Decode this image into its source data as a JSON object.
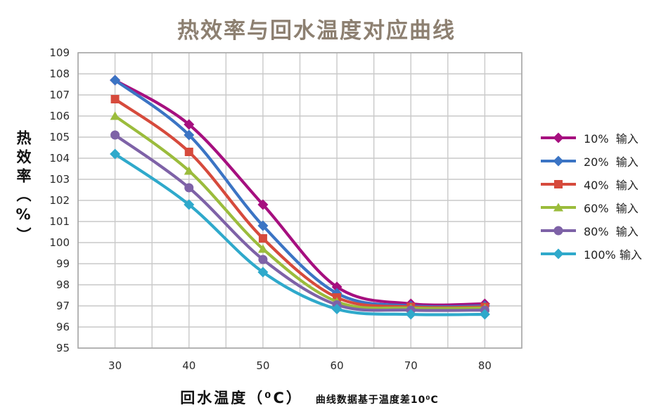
{
  "title": "热效率与回水温度对应曲线",
  "colors": {
    "title_text": "#8D8071",
    "grid_line": "#C9C9C9",
    "plot_border": "#A8A8A8",
    "tick_text": "#2B2B2B"
  },
  "chart_data": {
    "type": "line",
    "title": "热效率与回水温度对应曲线",
    "xlabel": "回水温度（⁰C）",
    "xlabel_note": "曲线数据基于温度差10⁰C",
    "ylabel": "热效率（%）",
    "x": [
      30,
      40,
      50,
      60,
      70,
      80
    ],
    "xlim": [
      25,
      85
    ],
    "ylim": [
      95,
      109
    ],
    "x_ticks": [
      30,
      40,
      50,
      60,
      70,
      80
    ],
    "y_ticks": [
      95,
      96,
      97,
      98,
      99,
      100,
      101,
      102,
      103,
      104,
      105,
      106,
      107,
      108,
      109
    ],
    "x_grid_step": 5,
    "y_grid_step": 1,
    "grid": true,
    "legend_position": "right",
    "series": [
      {
        "name": "10%  输入",
        "color": "#A60F7F",
        "marker": "diamond",
        "values": [
          107.7,
          105.6,
          101.8,
          97.9,
          97.1,
          97.1
        ]
      },
      {
        "name": "20%  输入",
        "color": "#3B74C4",
        "marker": "diamond",
        "values": [
          107.7,
          105.1,
          100.8,
          97.6,
          97.0,
          97.0
        ]
      },
      {
        "name": "40%  输入",
        "color": "#D64A3C",
        "marker": "square",
        "values": [
          106.8,
          104.3,
          100.2,
          97.4,
          96.95,
          96.95
        ]
      },
      {
        "name": "60%  输入",
        "color": "#9BBC3C",
        "marker": "triangle",
        "values": [
          106.0,
          103.4,
          99.7,
          97.2,
          96.9,
          96.9
        ]
      },
      {
        "name": "80%  输入",
        "color": "#7E62A7",
        "marker": "circle",
        "values": [
          105.1,
          102.6,
          99.2,
          97.05,
          96.8,
          96.8
        ]
      },
      {
        "name": "100% 输入",
        "color": "#2FA9CB",
        "marker": "diamond",
        "values": [
          104.2,
          101.8,
          98.6,
          96.85,
          96.6,
          96.6
        ]
      }
    ]
  }
}
